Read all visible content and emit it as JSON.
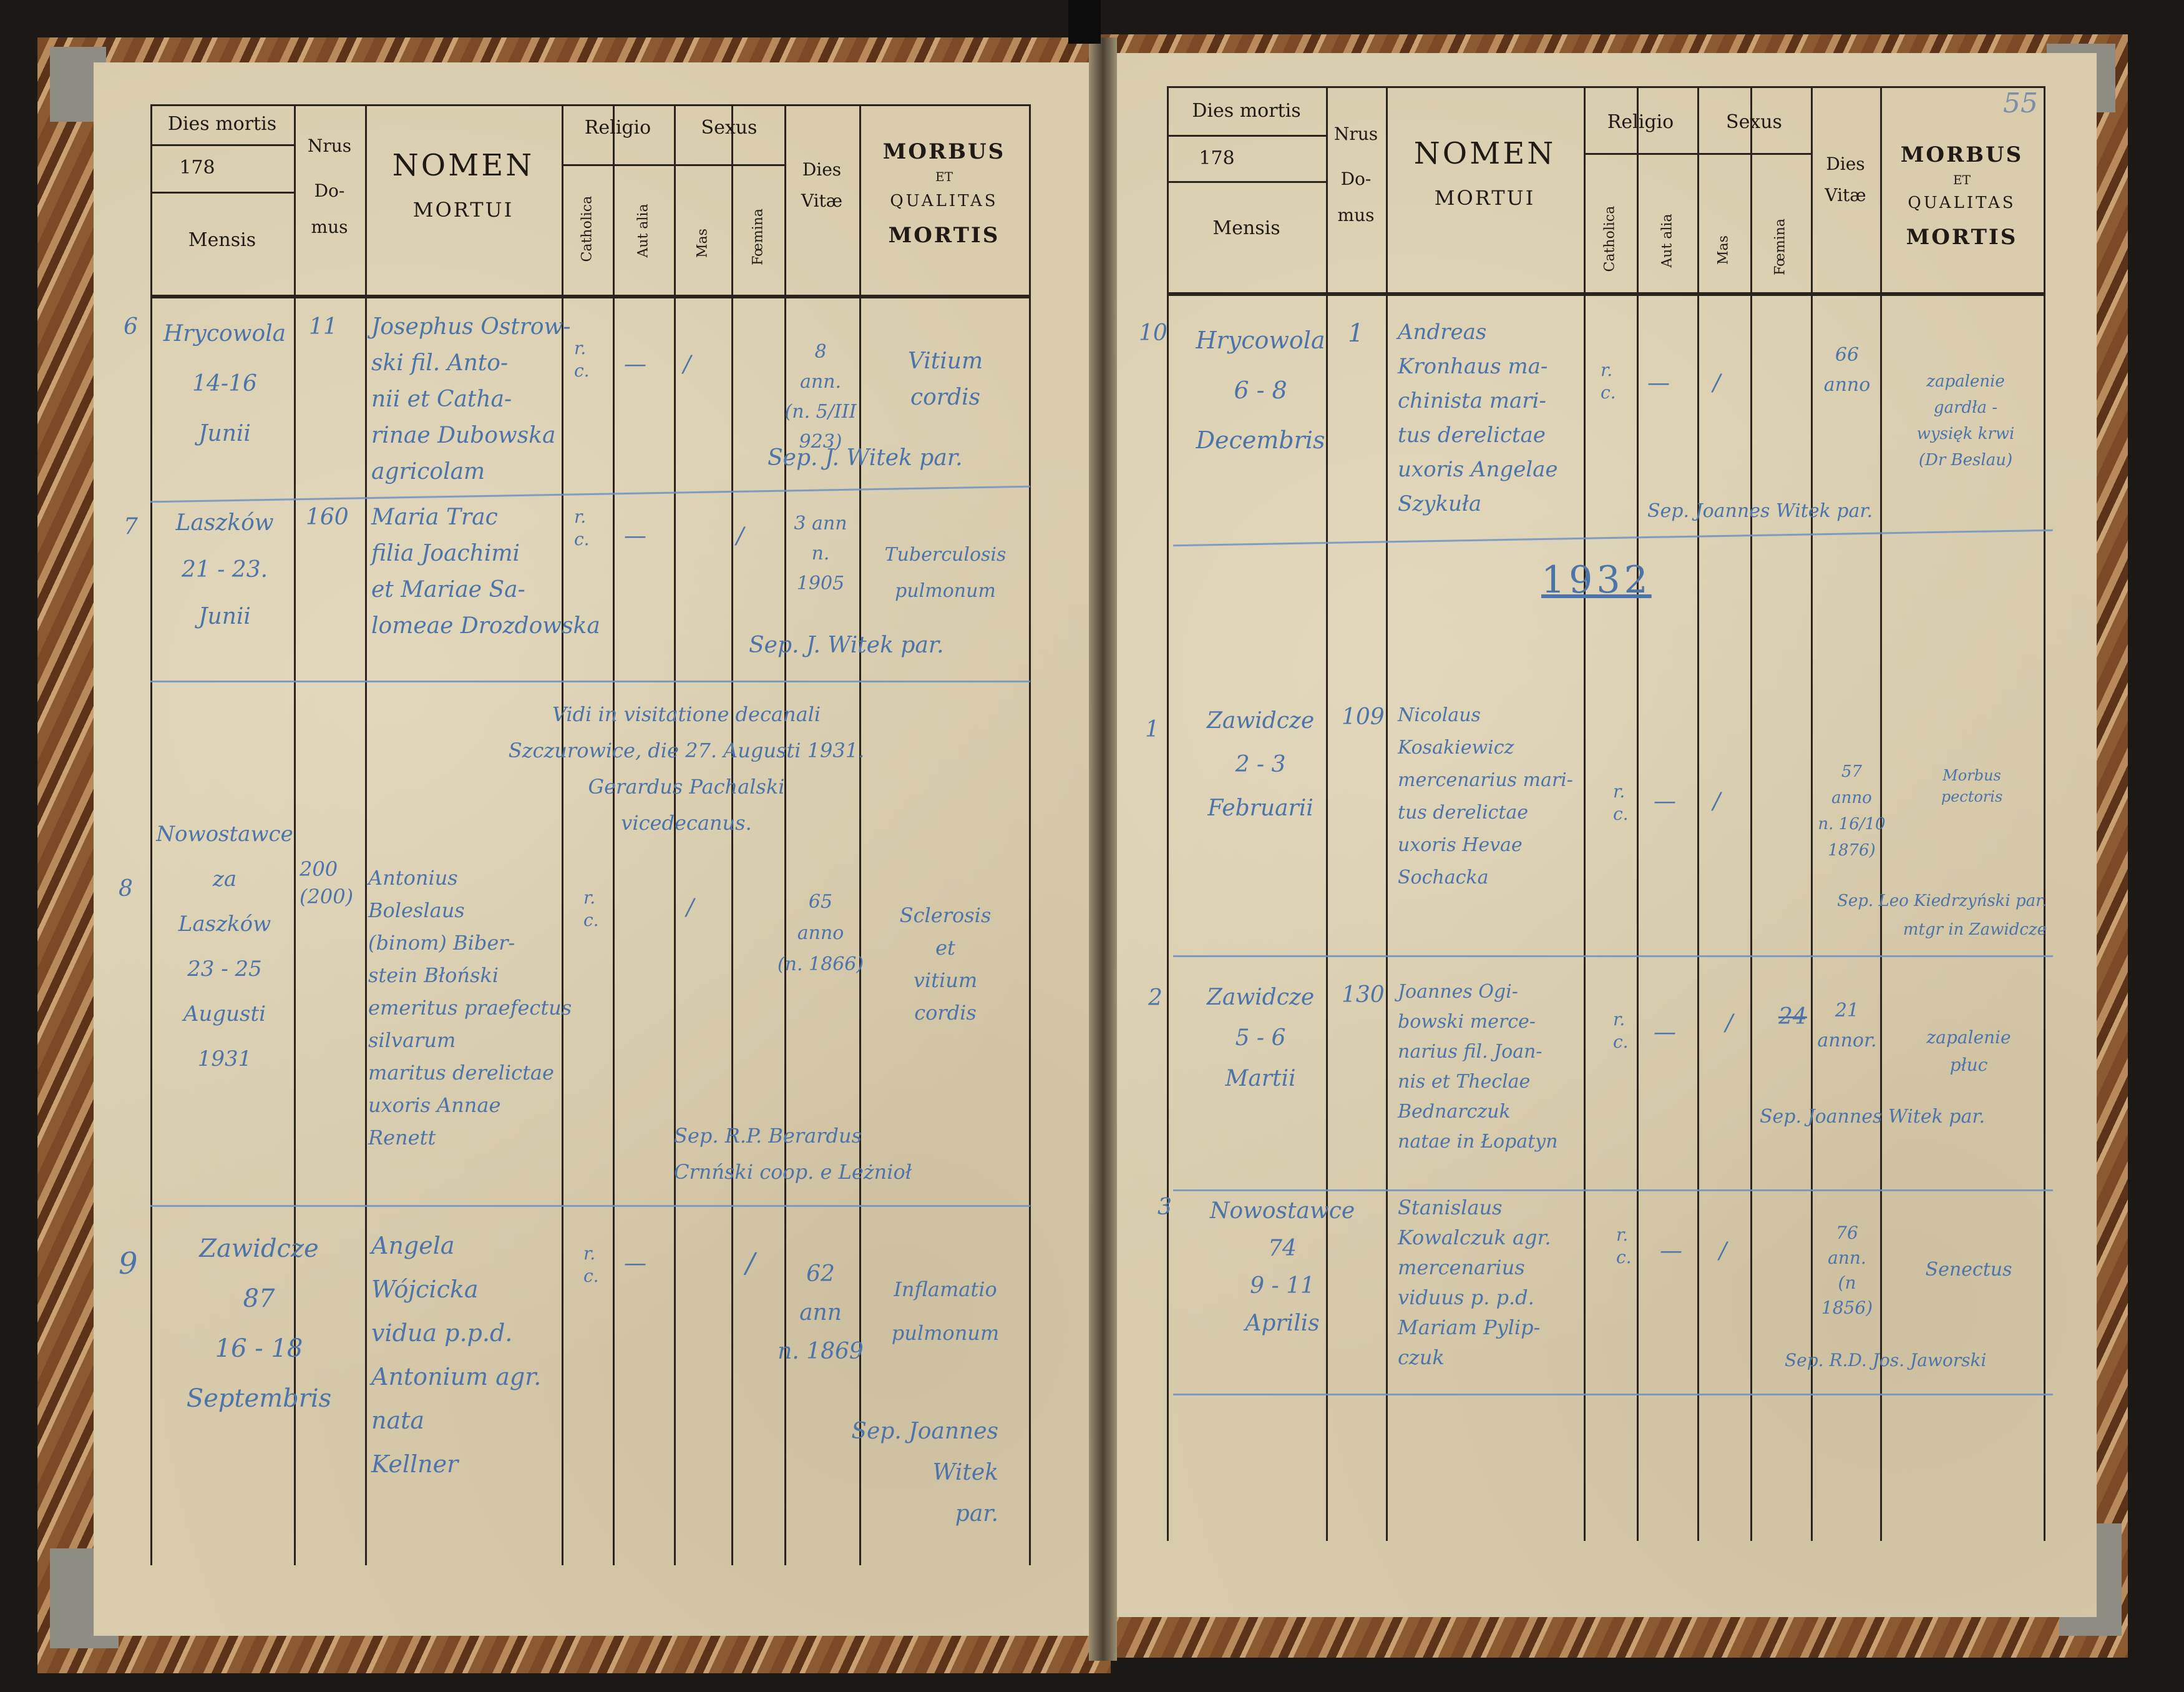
{
  "header": {
    "dies_mortis": "Dies mortis",
    "year_prefix": "178",
    "mensis": "Mensis",
    "nrus": "Nrus",
    "domus": "Do-\nmus",
    "nomen": "NOMEN",
    "mortui": "MORTUI",
    "religio": "Religio",
    "catholica": "Catholica",
    "aut_alia": "Aut alia",
    "sexus": "Sexus",
    "mas": "Mas",
    "foemina": "Fœmina",
    "dies_vitae": "Dies\nVitæ",
    "morbus": "MORBUS",
    "et": "ET",
    "qualitas": "QUALITAS",
    "mortis": "MORTIS"
  },
  "right_page_number": "55",
  "left_entries": [
    {
      "no": "6",
      "place": "Hrycowola\n14-16\nJunii",
      "house": "11",
      "name": "Josephus Ostrow-\nski fil. Anto-\nnii et Catha-\nrinae Dubowska\nagricolam",
      "cath": "r.\nc.",
      "alia": "—",
      "mas": "/",
      "foem": "",
      "vita": "8\nann.\n(n. 5/III 923)",
      "morbus": "Vitium\ncordis",
      "sep": "Sep. J. Witek par."
    },
    {
      "no": "7",
      "place": "Laszków\n21 - 23.\nJunii",
      "house": "160",
      "name": "Maria Trac\nfilia Joachimi\net Mariae Sa-\nlomeae Drozdowska",
      "cath": "r.\nc.",
      "alia": "—",
      "mas": "",
      "foem": "/",
      "vita": "3 ann\nn.\n1905",
      "morbus": "Tuberculosis\npulmonum",
      "sep": "Sep. J. Witek par."
    },
    {
      "no": "8",
      "place": "Nowostawce\nza\nLaszków\n23 - 25\nAugusti\n1931",
      "house": "200\n(200)",
      "name": "Antonius\nBoleslaus\n(binom) Biber-\nstein Błoński\nemeritus praefectus\nsilvarum\nmaritus derelictae\nuxoris Annae\nRenett",
      "cath": "r.\nc.",
      "alia": "",
      "mas": "/",
      "foem": "",
      "vita": "65\nanno\n(n. 1866)",
      "morbus": "Sclerosis\net\nvitium\ncordis",
      "sep": "Sep. R.P. Berardus\nCrnński coop. e Leżnioł"
    },
    {
      "no": "9",
      "place": "Zawidcze\n87\n16 - 18\nSeptembris",
      "house": "",
      "name": "Angela\nWójcicka\nvidua p.p.d.\nAntonium agr.\nnata\nKellner",
      "cath": "r.\nc.",
      "alia": "—",
      "mas": "",
      "foem": "/",
      "vita": "62\nann\nn. 1869",
      "morbus": "Inflamatio\npulmonum",
      "sep": "Sep. Joannes\nWitek\npar."
    }
  ],
  "visitation_note": "Vidi in visitatione decanali\nSzczurowice, die 27. Augusti 1931.\nGerardus Pachalski\nvicedecanus.",
  "year_heading": "1932",
  "right_entries": [
    {
      "no": "10",
      "place": "Hrycowola\n6 - 8\nDecembris",
      "house": "1",
      "name": "Andreas\nKronhaus ma-\nchinista mari-\ntus derelictae\nuxoris Angelae\nSzykuła",
      "cath": "r.\nc.",
      "alia": "—",
      "mas": "/",
      "foem": "",
      "vita": "66\nanno",
      "morbus": "zapalenie\ngardła -\nwysięk krwi\n(Dr Beslau)",
      "sep": "Sep. Joannes Witek par."
    },
    {
      "no": "1",
      "place": "Zawidcze\n2 - 3\nFebruarii",
      "house": "109",
      "name": "Nicolaus\nKosakiewicz\nmercenarius mari-\ntus derelictae\nuxoris Hevae\nSochacka",
      "cath": "r.\nc.",
      "alia": "—",
      "mas": "/",
      "foem": "",
      "vita": "57\nanno\nn. 16/10 1876)",
      "morbus": "Morbus\npectoris",
      "sep": "Sep. Leo Kiedrzyński par.\nmtgr in Zawidcze"
    },
    {
      "no": "2",
      "place": "Zawidcze\n5 - 6\nMartii",
      "house": "130",
      "name": "Joannes Ogi-\nbowski merce-\nnarius fil. Joan-\nnis et Theclae\nBednarczuk\nnatae in Łopatyn",
      "cath": "r.\nc.",
      "alia": "—",
      "mas": "/",
      "foem": "24",
      "vita": "21\nannor.",
      "morbus": "zapalenie\npłuc",
      "sep": "Sep. Joannes Witek par."
    },
    {
      "no": "3",
      "place": "Nowostawce\n74\n9 - 11\nAprilis",
      "house": "",
      "name": "Stanislaus\nKowalczuk agr.\nmercenarius\nviduus p. p.d.\nMariam Pylip-\nczuk",
      "cath": "r.\nc.",
      "alia": "—",
      "mas": "/",
      "foem": "",
      "vita": "76\nann.\n(n\n1856)",
      "morbus": "Senectus",
      "sep": "Sep. R.D. Jos. Jaworski"
    }
  ]
}
